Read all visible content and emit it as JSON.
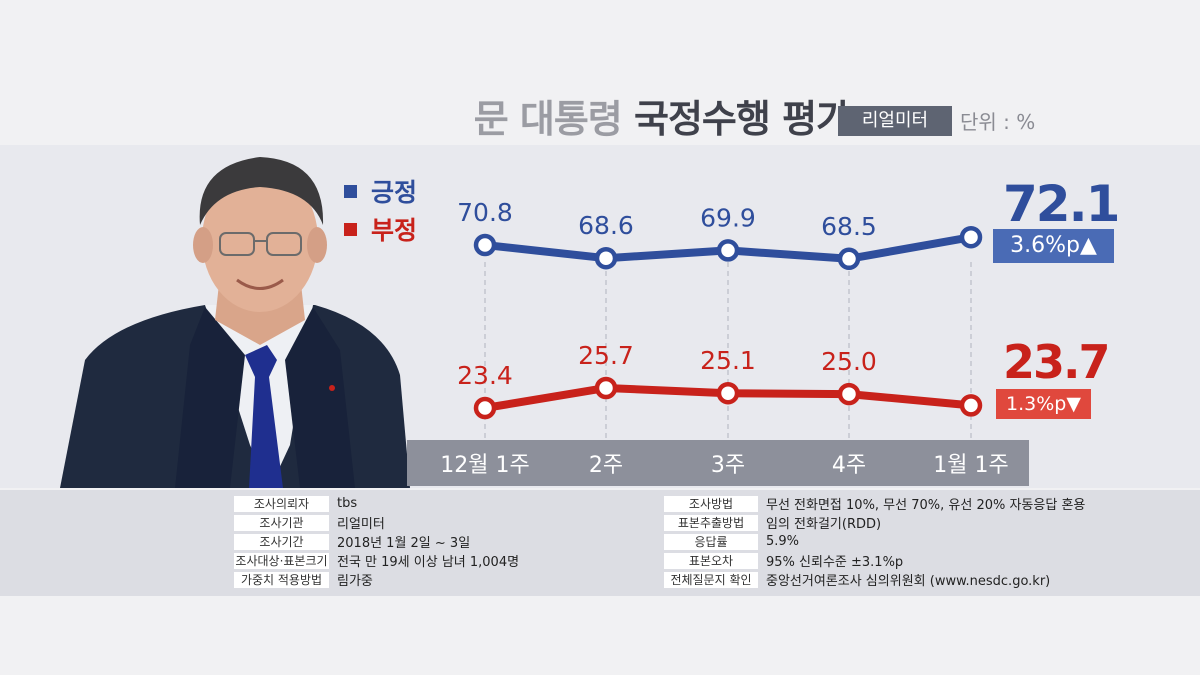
{
  "header": {
    "title_part1": "문 대통령",
    "title_part2": "국정수행 평가",
    "source_badge": "리얼미터",
    "unit": "단위 : %"
  },
  "legend": {
    "positive": "긍정",
    "negative": "부정"
  },
  "colors": {
    "positive": "#2f4e9c",
    "negative": "#c8221b",
    "axis_bar": "#8d909b"
  },
  "chart_data": {
    "type": "line",
    "categories": [
      "12월 1주",
      "2주",
      "3주",
      "4주",
      "1월 1주"
    ],
    "series": [
      {
        "name": "긍정",
        "values": [
          70.8,
          68.6,
          69.9,
          68.5,
          72.1
        ],
        "labels": [
          "70.8",
          "68.6",
          "69.9",
          "68.5",
          ""
        ]
      },
      {
        "name": "부정",
        "values": [
          23.4,
          25.7,
          25.1,
          25.0,
          23.7
        ],
        "labels": [
          "23.4",
          "25.7",
          "25.1",
          "25.0",
          ""
        ]
      }
    ]
  },
  "latest": {
    "positive_value": "72.1",
    "positive_change": "3.6%p▲",
    "negative_value": "23.7",
    "negative_change": "1.3%p▼"
  },
  "info_left": [
    {
      "key": "조사의뢰자",
      "value": "tbs"
    },
    {
      "key": "조사기관",
      "value": "리얼미터"
    },
    {
      "key": "조사기간",
      "value": "2018년 1월 2일 ~ 3일"
    },
    {
      "key": "조사대상·표본크기",
      "value": "전국 만 19세 이상 남녀 1,004명"
    },
    {
      "key": "가중치 적용방법",
      "value": "림가중"
    }
  ],
  "info_right": [
    {
      "key": "조사방법",
      "value": "무선 전화면접 10%, 무선 70%, 유선 20% 자동응답 혼용"
    },
    {
      "key": "표본추출방법",
      "value": "임의 전화걸기(RDD)"
    },
    {
      "key": "응답률",
      "value": "5.9%"
    },
    {
      "key": "표본오차",
      "value": "95% 신뢰수준 ±3.1%p"
    },
    {
      "key": "전체질문지 확인",
      "value": "중앙선거여론조사 심의위원회 (www.nesdc.go.kr)"
    }
  ]
}
